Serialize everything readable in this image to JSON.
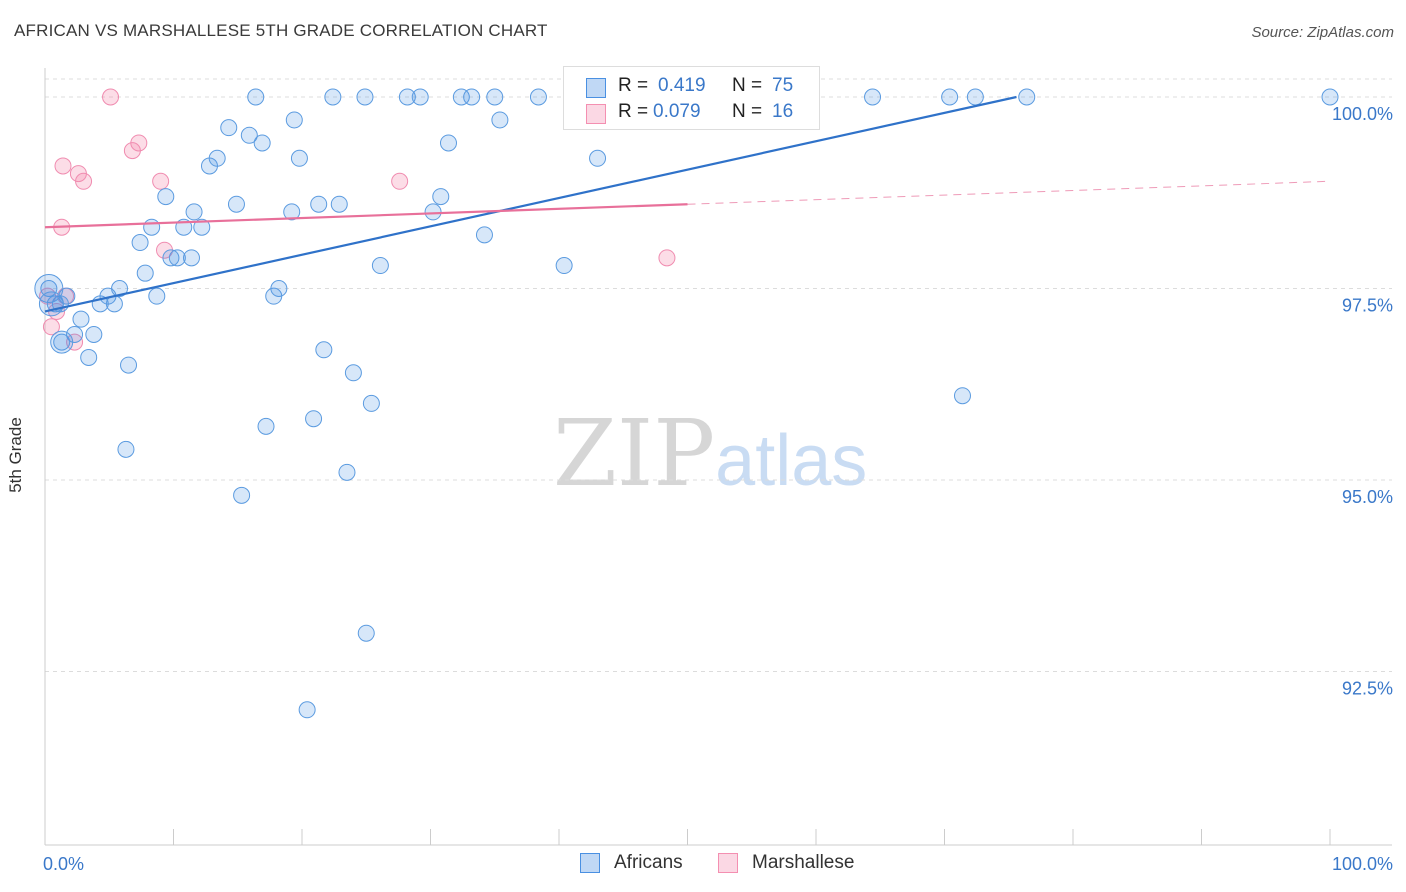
{
  "title": "AFRICAN VS MARSHALLESE 5TH GRADE CORRELATION CHART",
  "source": "Source: ZipAtlas.com",
  "watermark": {
    "zip": "ZIP",
    "atlas": "atlas"
  },
  "legend_box": {
    "rows": [
      {
        "r_label": "R =",
        "r_value": "0.419",
        "n_label": "N =",
        "n_value": "75",
        "color": "#4a90e2"
      },
      {
        "r_label": "R =",
        "r_value": "0.079",
        "n_label": "N =",
        "n_value": "16",
        "color": "#f48fb1"
      }
    ]
  },
  "bottom_legend": {
    "africans": "Africans",
    "marshallese": "Marshallese"
  },
  "chart_data": {
    "type": "scatter",
    "title": "AFRICAN VS MARSHALLESE 5TH GRADE CORRELATION CHART",
    "xlabel": "",
    "ylabel": "5th Grade",
    "xlim": [
      0,
      100
    ],
    "ylim": [
      90.3,
      100.2
    ],
    "x_tick_labels": [
      "0.0%",
      "100.0%"
    ],
    "y_ticks": [
      92.5,
      95.0,
      97.5,
      100.0
    ],
    "y_tick_labels": [
      "92.5%",
      "95.0%",
      "97.5%",
      "100.0%"
    ],
    "grid": true,
    "colors": {
      "africans": "#4a90e2",
      "marshallese": "#f48fb1",
      "africans_line": "#2f72c9",
      "marshallese_line": "#e8709a"
    },
    "series": [
      {
        "name": "Africans",
        "points": [
          [
            0.3,
            97.5
          ],
          [
            0.8,
            97.3
          ],
          [
            1.3,
            96.8
          ],
          [
            1.7,
            97.4
          ],
          [
            2.3,
            96.9
          ],
          [
            2.8,
            97.1
          ],
          [
            3.4,
            96.6
          ],
          [
            3.8,
            96.9
          ],
          [
            4.3,
            97.3
          ],
          [
            4.9,
            97.4
          ],
          [
            5.4,
            97.3
          ],
          [
            5.8,
            97.5
          ],
          [
            6.5,
            96.5
          ],
          [
            6.3,
            95.4
          ],
          [
            7.4,
            98.1
          ],
          [
            7.8,
            97.7
          ],
          [
            8.3,
            98.3
          ],
          [
            8.7,
            97.4
          ],
          [
            9.4,
            98.7
          ],
          [
            9.8,
            97.9
          ],
          [
            10.3,
            97.9
          ],
          [
            10.8,
            98.3
          ],
          [
            11.4,
            97.9
          ],
          [
            11.6,
            98.5
          ],
          [
            12.2,
            98.3
          ],
          [
            12.8,
            99.1
          ],
          [
            13.4,
            99.2
          ],
          [
            14.3,
            99.6
          ],
          [
            14.9,
            98.6
          ],
          [
            15.3,
            94.8
          ],
          [
            15.9,
            99.5
          ],
          [
            16.4,
            100.0
          ],
          [
            16.9,
            99.4
          ],
          [
            17.2,
            95.7
          ],
          [
            17.8,
            97.4
          ],
          [
            18.2,
            97.5
          ],
          [
            19.2,
            98.5
          ],
          [
            19.4,
            99.7
          ],
          [
            19.8,
            99.2
          ],
          [
            20.4,
            92.0
          ],
          [
            20.9,
            95.8
          ],
          [
            21.3,
            98.6
          ],
          [
            21.7,
            96.7
          ],
          [
            22.4,
            100.0
          ],
          [
            22.9,
            98.6
          ],
          [
            23.5,
            95.1
          ],
          [
            24.0,
            96.4
          ],
          [
            24.9,
            100.0
          ],
          [
            25.0,
            93.0
          ],
          [
            25.4,
            96.0
          ],
          [
            26.1,
            97.8
          ],
          [
            28.2,
            100.0
          ],
          [
            29.2,
            100.0
          ],
          [
            30.2,
            98.5
          ],
          [
            30.8,
            98.7
          ],
          [
            31.4,
            99.4
          ],
          [
            32.4,
            100.0
          ],
          [
            33.2,
            100.0
          ],
          [
            34.2,
            98.2
          ],
          [
            35.0,
            100.0
          ],
          [
            35.4,
            99.7
          ],
          [
            38.4,
            100.0
          ],
          [
            40.4,
            97.8
          ],
          [
            42.4,
            100.0
          ],
          [
            43.0,
            99.2
          ],
          [
            52.4,
            100.0
          ],
          [
            55.4,
            100.0
          ],
          [
            58.4,
            100.0
          ],
          [
            64.4,
            100.0
          ],
          [
            70.4,
            100.0
          ],
          [
            71.4,
            96.1
          ],
          [
            72.4,
            100.0
          ],
          [
            76.4,
            100.0
          ],
          [
            100.0,
            100.0
          ],
          [
            1.2,
            97.3
          ]
        ],
        "trend": {
          "x0": 0,
          "y0": 97.2,
          "x1": 75.6,
          "y1": 100.0
        }
      },
      {
        "name": "Marshallese",
        "points": [
          [
            0.2,
            97.4
          ],
          [
            0.5,
            97.0
          ],
          [
            0.9,
            97.2
          ],
          [
            1.3,
            98.3
          ],
          [
            1.6,
            97.4
          ],
          [
            1.4,
            99.1
          ],
          [
            2.3,
            96.8
          ],
          [
            2.6,
            99.0
          ],
          [
            3.0,
            98.9
          ],
          [
            5.1,
            100.0
          ],
          [
            6.8,
            99.3
          ],
          [
            7.3,
            99.4
          ],
          [
            9.0,
            98.9
          ],
          [
            9.3,
            98.0
          ],
          [
            27.6,
            98.9
          ],
          [
            48.4,
            97.9
          ]
        ],
        "trend": {
          "x0": 0,
          "y0": 98.3,
          "x1": 100,
          "y1": 98.9,
          "solid_until": 50
        }
      }
    ]
  }
}
